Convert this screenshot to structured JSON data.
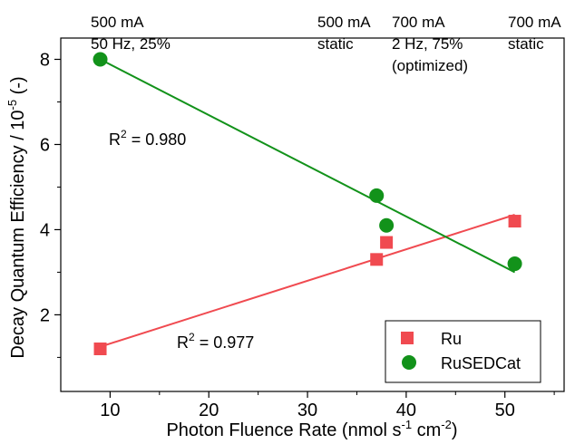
{
  "chart_data": {
    "type": "scatter",
    "xlabel": "Photon Fluence Rate (nmol s",
    "xlabel_sup1": "-1",
    "xlabel_mid": " cm",
    "xlabel_sup2": "-2",
    "xlabel_end": ")",
    "ylabel": "Decay Quantum Efficiency / 10",
    "ylabel_sup": "-5",
    "ylabel_end": " (-)",
    "xlim": [
      5,
      56
    ],
    "ylim": [
      0.2,
      8.5
    ],
    "xticks": [
      10,
      20,
      30,
      40,
      50
    ],
    "yticks": [
      2,
      4,
      6,
      8
    ],
    "legend_position": "bottom-right",
    "series": [
      {
        "name": "Ru",
        "marker": "square",
        "color": "#f04a50",
        "points": [
          {
            "x": 9,
            "y": 1.2
          },
          {
            "x": 37,
            "y": 3.3
          },
          {
            "x": 38,
            "y": 3.7
          },
          {
            "x": 51,
            "y": 4.2
          }
        ],
        "fit": {
          "x": [
            9,
            51
          ],
          "y": [
            1.25,
            4.35
          ]
        },
        "r2_label": "R",
        "r2_sup": "2",
        "r2_value": " = 0.977"
      },
      {
        "name": "RuSEDCat",
        "marker": "circle",
        "color": "#12921a",
        "points": [
          {
            "x": 9,
            "y": 8.0
          },
          {
            "x": 37,
            "y": 4.8
          },
          {
            "x": 38,
            "y": 4.1
          },
          {
            "x": 51,
            "y": 3.2
          }
        ],
        "fit": {
          "x": [
            9,
            51
          ],
          "y": [
            8.0,
            3.0
          ]
        },
        "r2_label": "R",
        "r2_sup": "2",
        "r2_value": " = 0.980"
      }
    ],
    "annotations": [
      {
        "lines": [
          "500 mA",
          "50 Hz, 25%"
        ]
      },
      {
        "lines": [
          "500 mA",
          "static"
        ]
      },
      {
        "lines": [
          "700 mA",
          "2 Hz, 75%",
          "(optimized)"
        ]
      },
      {
        "lines": [
          "700 mA",
          "static"
        ]
      }
    ]
  }
}
